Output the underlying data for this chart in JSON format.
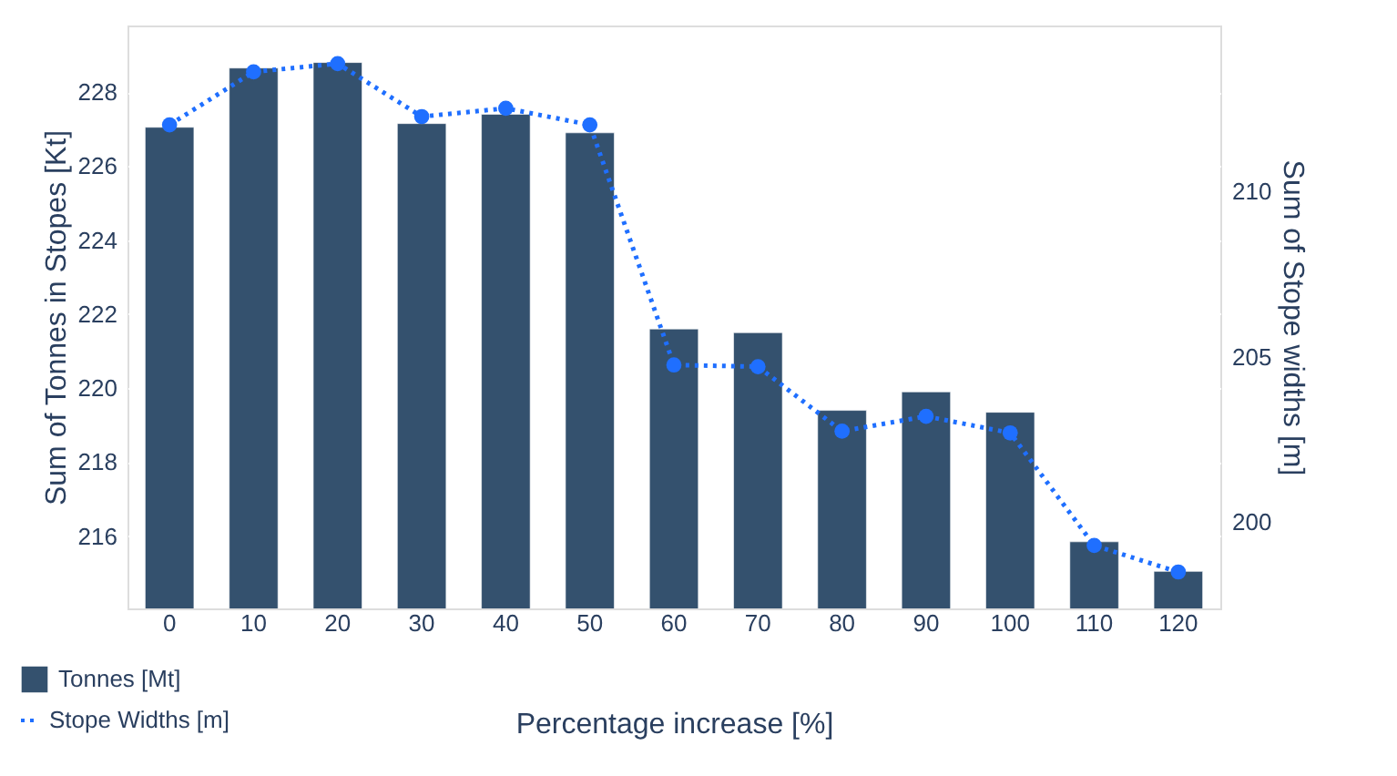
{
  "chart_data": {
    "type": "bar",
    "xlabel": "Percentage increase [%]",
    "ylabel": "Sum of Tonnes in Stopes [Kt]",
    "y2label": "Sum of Stope widths [m]",
    "categories": [
      "0",
      "10",
      "20",
      "30",
      "40",
      "50",
      "60",
      "70",
      "80",
      "90",
      "100",
      "110",
      "120"
    ],
    "series": [
      {
        "name": "Tonnes [Mt]",
        "color": "#34516e",
        "values": [
          227.05,
          228.65,
          228.8,
          227.15,
          227.4,
          226.9,
          221.6,
          221.5,
          219.4,
          219.9,
          219.35,
          215.85,
          215.05
        ]
      },
      {
        "name": "Stope Widths [m]",
        "type": "line",
        "axis": "y2",
        "color": "#1f6fff",
        "marker": "circle",
        "line_style": "dotted",
        "values": [
          212.0,
          213.6,
          213.85,
          212.25,
          212.5,
          212.0,
          204.75,
          204.7,
          202.75,
          203.2,
          202.7,
          199.3,
          198.5
        ]
      }
    ],
    "ylim": [
      214.05,
      229.8
    ],
    "yticks": [
      216,
      218,
      220,
      222,
      224,
      226,
      228
    ],
    "y2lim": [
      197.4,
      215.0
    ],
    "y2ticks": [
      200,
      205,
      210
    ],
    "grid": "y",
    "legend": "bottom left"
  }
}
